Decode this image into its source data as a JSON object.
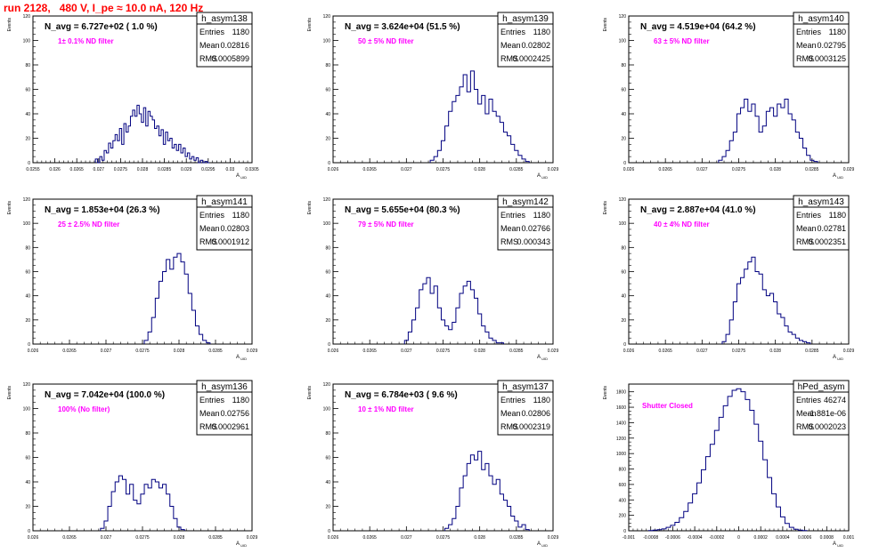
{
  "run_title": "run 2128,   480 V, I_pe ≈ 10.0 nA, 120 Hz",
  "colors": {
    "hist": "#000080",
    "annotation": "#ff00ff",
    "title": "#ff0000",
    "frame": "#000000"
  },
  "chart_data": [
    {
      "type": "histogram",
      "hist_name": "h_asym138",
      "entries": "1180",
      "mean": "0.02816",
      "rms": "0.0005899",
      "navg_label": "N_avg = 6.727e+02 ( 1.0 %)",
      "filter_label": "1± 0.1% ND filter",
      "ylabel": "Events",
      "xlabel": "A_UID",
      "xlim": [
        0.0255,
        0.0305
      ],
      "ylim": [
        0,
        120
      ],
      "yticks": [
        0,
        20,
        40,
        60,
        80,
        100,
        120
      ],
      "xticks": [
        0.0255,
        0.026,
        0.0265,
        0.027,
        0.0275,
        0.028,
        0.0285,
        0.029,
        0.0295,
        0.03,
        0.0305
      ],
      "xtick_labels": [
        "0.0255",
        "0.026",
        "0.0265",
        "0.027",
        "0.0275",
        "0.028",
        "0.0285",
        "0.029",
        "0.0295",
        "0.03",
        "0.0305"
      ],
      "x": [
        0.02695,
        0.027,
        0.02705,
        0.0271,
        0.02715,
        0.0272,
        0.02725,
        0.0273,
        0.02735,
        0.0274,
        0.02745,
        0.0275,
        0.02755,
        0.0276,
        0.02765,
        0.0277,
        0.02775,
        0.0278,
        0.02785,
        0.0279,
        0.02795,
        0.028,
        0.02805,
        0.0281,
        0.02815,
        0.0282,
        0.02825,
        0.0283,
        0.02835,
        0.0284,
        0.02845,
        0.0285,
        0.02855,
        0.0286,
        0.02865,
        0.0287,
        0.02875,
        0.0288,
        0.02885,
        0.0289,
        0.02895,
        0.029,
        0.02905,
        0.0291,
        0.02915,
        0.0292,
        0.02925,
        0.0293,
        0.02935,
        0.0294,
        0.02945,
        0.0295
      ],
      "values": [
        3,
        0,
        5,
        2,
        10,
        8,
        16,
        12,
        18,
        23,
        18,
        28,
        15,
        32,
        25,
        30,
        38,
        43,
        38,
        47,
        40,
        33,
        45,
        30,
        42,
        38,
        35,
        28,
        30,
        22,
        27,
        15,
        25,
        18,
        20,
        12,
        15,
        10,
        15,
        8,
        12,
        5,
        8,
        3,
        5,
        2,
        4,
        0,
        2,
        0,
        1,
        0
      ]
    },
    {
      "type": "histogram",
      "hist_name": "h_asym139",
      "entries": "1180",
      "mean": "0.02802",
      "rms": "0.0002425",
      "navg_label": "N_avg = 3.624e+04 (51.5 %)",
      "filter_label": "50 ± 5% ND filter",
      "ylabel": "Events",
      "xlabel": "A_UID",
      "xlim": [
        0.026,
        0.029
      ],
      "ylim": [
        0,
        120
      ],
      "yticks": [
        0,
        20,
        40,
        60,
        80,
        100,
        120
      ],
      "xticks": [
        0.026,
        0.0265,
        0.027,
        0.0275,
        0.028,
        0.0285,
        0.029
      ],
      "xtick_labels": [
        "0.026",
        "0.0265",
        "0.027",
        "0.0275",
        "0.028",
        "0.0285",
        "0.029"
      ],
      "x": [
        0.02735,
        0.0274,
        0.02745,
        0.0275,
        0.02755,
        0.0276,
        0.02765,
        0.0277,
        0.02775,
        0.0278,
        0.02785,
        0.0279,
        0.02795,
        0.028,
        0.02805,
        0.0281,
        0.02815,
        0.0282,
        0.02825,
        0.0283,
        0.02835,
        0.0284,
        0.02845,
        0.0285,
        0.02855,
        0.0286,
        0.02865
      ],
      "values": [
        2,
        5,
        10,
        18,
        30,
        42,
        50,
        55,
        62,
        72,
        58,
        75,
        60,
        48,
        55,
        40,
        52,
        42,
        38,
        33,
        25,
        22,
        15,
        10,
        6,
        3,
        1
      ]
    },
    {
      "type": "histogram",
      "hist_name": "h_asym140",
      "entries": "1180",
      "mean": "0.02795",
      "rms": "0.0003125",
      "navg_label": "N_avg = 4.519e+04 (64.2 %)",
      "filter_label": "63 ± 5% ND filter",
      "ylabel": "Events",
      "xlabel": "A_UID",
      "xlim": [
        0.026,
        0.029
      ],
      "ylim": [
        0,
        120
      ],
      "yticks": [
        0,
        20,
        40,
        60,
        80,
        100,
        120
      ],
      "xticks": [
        0.026,
        0.0265,
        0.027,
        0.0275,
        0.028,
        0.0285,
        0.029
      ],
      "xtick_labels": [
        "0.026",
        "0.0265",
        "0.027",
        "0.0275",
        "0.028",
        "0.0285",
        "0.029"
      ],
      "x": [
        0.02725,
        0.0273,
        0.02735,
        0.0274,
        0.02745,
        0.0275,
        0.02755,
        0.0276,
        0.02765,
        0.0277,
        0.02775,
        0.0278,
        0.02785,
        0.0279,
        0.02795,
        0.028,
        0.02805,
        0.0281,
        0.02815,
        0.0282,
        0.02825,
        0.0283,
        0.02835,
        0.0284,
        0.02845,
        0.0285,
        0.02855
      ],
      "values": [
        2,
        5,
        10,
        18,
        25,
        40,
        45,
        52,
        42,
        48,
        38,
        25,
        30,
        42,
        45,
        38,
        48,
        45,
        52,
        40,
        35,
        25,
        20,
        12,
        6,
        2,
        1
      ]
    },
    {
      "type": "histogram",
      "hist_name": "h_asym141",
      "entries": "1180",
      "mean": "0.02803",
      "rms": "0.0001912",
      "navg_label": "N_avg = 1.853e+04 (26.3 %)",
      "filter_label": "25 ± 2.5% ND filter",
      "ylabel": "Events",
      "xlabel": "A_UID",
      "xlim": [
        0.026,
        0.029
      ],
      "ylim": [
        0,
        120
      ],
      "yticks": [
        0,
        20,
        40,
        60,
        80,
        100,
        120
      ],
      "xticks": [
        0.026,
        0.0265,
        0.027,
        0.0275,
        0.028,
        0.0285,
        0.029
      ],
      "xtick_labels": [
        "0.026",
        "0.0265",
        "0.027",
        "0.0275",
        "0.028",
        "0.0285",
        "0.029"
      ],
      "x": [
        0.02755,
        0.0276,
        0.02765,
        0.0277,
        0.02775,
        0.0278,
        0.02785,
        0.0279,
        0.02795,
        0.028,
        0.02805,
        0.0281,
        0.02815,
        0.0282,
        0.02825,
        0.0283,
        0.02835,
        0.0284
      ],
      "values": [
        3,
        10,
        22,
        38,
        52,
        60,
        70,
        62,
        72,
        75,
        68,
        58,
        42,
        28,
        15,
        8,
        3,
        1
      ]
    },
    {
      "type": "histogram",
      "hist_name": "h_asym142",
      "entries": "1180",
      "mean": "0.02766",
      "rms": "0.000343",
      "navg_label": "N_avg = 5.655e+04 (80.3 %)",
      "filter_label": "79 ± 5% ND filter",
      "ylabel": "Events",
      "xlabel": "A_UID",
      "xlim": [
        0.026,
        0.029
      ],
      "ylim": [
        0,
        120
      ],
      "yticks": [
        0,
        20,
        40,
        60,
        80,
        100,
        120
      ],
      "xticks": [
        0.026,
        0.0265,
        0.027,
        0.0275,
        0.028,
        0.0285,
        0.029
      ],
      "xtick_labels": [
        "0.026",
        "0.0265",
        "0.027",
        "0.0275",
        "0.028",
        "0.0285",
        "0.029"
      ],
      "x": [
        0.027,
        0.02705,
        0.0271,
        0.02715,
        0.0272,
        0.02725,
        0.0273,
        0.02735,
        0.0274,
        0.02745,
        0.0275,
        0.02755,
        0.0276,
        0.02765,
        0.0277,
        0.02775,
        0.0278,
        0.02785,
        0.0279,
        0.02795,
        0.028,
        0.02805,
        0.0281,
        0.02815,
        0.0282,
        0.02825,
        0.0283
      ],
      "values": [
        3,
        10,
        20,
        30,
        45,
        50,
        55,
        42,
        48,
        30,
        20,
        15,
        12,
        18,
        30,
        42,
        48,
        52,
        45,
        38,
        25,
        15,
        10,
        5,
        3,
        1,
        1
      ]
    },
    {
      "type": "histogram",
      "hist_name": "h_asym143",
      "entries": "1180",
      "mean": "0.02781",
      "rms": "0.0002351",
      "navg_label": "N_avg = 2.887e+04 (41.0 %)",
      "filter_label": "40 ± 4% ND filter",
      "ylabel": "Events",
      "xlabel": "A_UID",
      "xlim": [
        0.026,
        0.029
      ],
      "ylim": [
        0,
        120
      ],
      "yticks": [
        0,
        20,
        40,
        60,
        80,
        100,
        120
      ],
      "xticks": [
        0.026,
        0.0265,
        0.027,
        0.0275,
        0.028,
        0.0285,
        0.029
      ],
      "xtick_labels": [
        "0.026",
        "0.0265",
        "0.027",
        "0.0275",
        "0.028",
        "0.0285",
        "0.029"
      ],
      "x": [
        0.0273,
        0.02735,
        0.0274,
        0.02745,
        0.0275,
        0.02755,
        0.0276,
        0.02765,
        0.0277,
        0.02775,
        0.0278,
        0.02785,
        0.0279,
        0.02795,
        0.028,
        0.02805,
        0.0281,
        0.02815,
        0.0282,
        0.02825,
        0.0283,
        0.02835,
        0.0284,
        0.02845
      ],
      "values": [
        2,
        8,
        20,
        35,
        50,
        55,
        62,
        68,
        72,
        60,
        58,
        45,
        40,
        42,
        35,
        25,
        22,
        15,
        10,
        8,
        5,
        3,
        2,
        1
      ]
    },
    {
      "type": "histogram",
      "hist_name": "h_asym136",
      "entries": "1180",
      "mean": "0.02756",
      "rms": "0.0002961",
      "navg_label": "N_avg = 7.042e+04 (100.0 %)",
      "filter_label": "100% (No filter)",
      "ylabel": "Events",
      "xlabel": "A_UID",
      "xlim": [
        0.026,
        0.029
      ],
      "ylim": [
        0,
        120
      ],
      "yticks": [
        0,
        20,
        40,
        60,
        80,
        100,
        120
      ],
      "xticks": [
        0.026,
        0.0265,
        0.027,
        0.0275,
        0.028,
        0.0285,
        0.029
      ],
      "xtick_labels": [
        "0.026",
        "0.0265",
        "0.027",
        "0.0275",
        "0.028",
        "0.0285",
        "0.029"
      ],
      "x": [
        0.02695,
        0.027,
        0.02705,
        0.0271,
        0.02715,
        0.0272,
        0.02725,
        0.0273,
        0.02735,
        0.0274,
        0.02745,
        0.0275,
        0.02755,
        0.0276,
        0.02765,
        0.0277,
        0.02775,
        0.0278,
        0.02785,
        0.0279,
        0.02795,
        0.028,
        0.02805
      ],
      "values": [
        2,
        8,
        20,
        32,
        40,
        45,
        42,
        30,
        38,
        25,
        22,
        30,
        38,
        35,
        42,
        40,
        35,
        38,
        30,
        20,
        10,
        3,
        1
      ]
    },
    {
      "type": "histogram",
      "hist_name": "h_asym137",
      "entries": "1180",
      "mean": "0.02806",
      "rms": "0.0002319",
      "navg_label": "N_avg = 6.784e+03 ( 9.6 %)",
      "filter_label": "10 ± 1% ND filter",
      "ylabel": "Events",
      "xlabel": "A_UID",
      "xlim": [
        0.026,
        0.029
      ],
      "ylim": [
        0,
        120
      ],
      "yticks": [
        0,
        20,
        40,
        60,
        80,
        100,
        120
      ],
      "xticks": [
        0.026,
        0.0265,
        0.027,
        0.0275,
        0.028,
        0.0285,
        0.029
      ],
      "xtick_labels": [
        "0.026",
        "0.0265",
        "0.027",
        "0.0275",
        "0.028",
        "0.0285",
        "0.029"
      ],
      "x": [
        0.02755,
        0.0276,
        0.02765,
        0.0277,
        0.02775,
        0.0278,
        0.02785,
        0.0279,
        0.02795,
        0.028,
        0.02805,
        0.0281,
        0.02815,
        0.0282,
        0.02825,
        0.0283,
        0.02835,
        0.0284,
        0.02845,
        0.0285,
        0.02855,
        0.0286,
        0.02865
      ],
      "values": [
        2,
        5,
        10,
        20,
        35,
        45,
        55,
        62,
        58,
        65,
        50,
        55,
        45,
        38,
        42,
        30,
        25,
        20,
        12,
        8,
        3,
        5,
        1
      ]
    },
    {
      "type": "histogram",
      "hist_name": "hPed_asym",
      "entries": "46274",
      "mean": "-1.881e-06",
      "rms": "0.0002023",
      "navg_label": "",
      "filter_label": "Shutter Closed",
      "ylabel": "Events",
      "xlabel": "A_UID",
      "xlim": [
        -0.001,
        0.001
      ],
      "ylim": [
        0,
        1900
      ],
      "yticks": [
        0,
        200,
        400,
        600,
        800,
        1000,
        1200,
        1400,
        1600,
        1800
      ],
      "xticks": [
        -0.001,
        -0.0008,
        -0.0006,
        -0.0004,
        -0.0002,
        0,
        0.0002,
        0.0004,
        0.0006,
        0.0008,
        0.001
      ],
      "xtick_labels": [
        "-0.001",
        "-0.0008",
        "-0.0006",
        "-0.0004",
        "-0.0002",
        "0",
        "0.0002",
        "0.0004",
        "0.0006",
        "0.0008",
        "0.001"
      ],
      "x": [
        -0.0008,
        -0.00076,
        -0.00072,
        -0.00068,
        -0.00064,
        -0.0006,
        -0.00056,
        -0.00052,
        -0.00048,
        -0.00044,
        -0.0004,
        -0.00036,
        -0.00032,
        -0.00028,
        -0.00024,
        -0.0002,
        -0.00016,
        -0.00012,
        -8e-05,
        -4e-05,
        0,
        4e-05,
        8e-05,
        0.00012,
        0.00016,
        0.0002,
        0.00024,
        0.00028,
        0.00032,
        0.00036,
        0.0004,
        0.00044,
        0.00048,
        0.00052,
        0.00056,
        0.0006
      ],
      "values": [
        3,
        8,
        15,
        25,
        45,
        70,
        110,
        170,
        250,
        360,
        480,
        620,
        790,
        960,
        1120,
        1300,
        1470,
        1620,
        1740,
        1820,
        1840,
        1800,
        1700,
        1560,
        1380,
        1160,
        920,
        690,
        480,
        310,
        180,
        95,
        45,
        20,
        8,
        3
      ]
    }
  ]
}
